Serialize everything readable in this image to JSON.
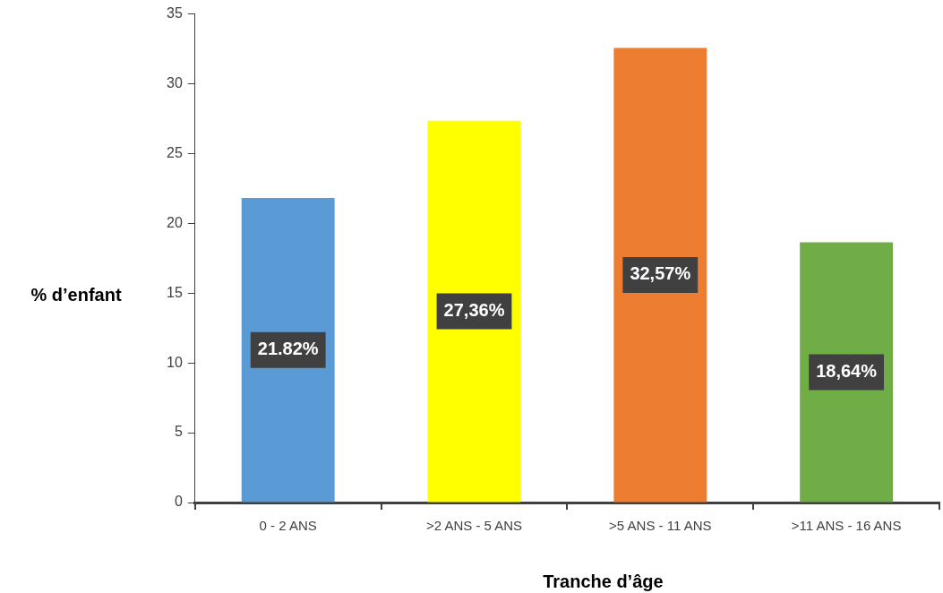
{
  "chart_data": {
    "type": "bar",
    "xlabel": "Tranche d’âge",
    "ylabel": "% d’enfant",
    "categories": [
      "0 - 2 ANS",
      ">2 ANS - 5 ANS",
      ">5 ANS - 11 ANS",
      ">11 ANS - 16 ANS"
    ],
    "values": [
      21.82,
      27.36,
      32.57,
      18.64
    ],
    "colors": [
      "#5b9bd5",
      "#ffff00",
      "#ed7d31",
      "#70ad47"
    ],
    "value_labels": [
      "21.82%",
      "27,36%",
      "32,57%",
      "18,64%"
    ],
    "ylim": [
      0,
      35
    ],
    "yticks": [
      0,
      5,
      10,
      15,
      20,
      25,
      30,
      35
    ],
    "grid": false,
    "legend": false
  }
}
